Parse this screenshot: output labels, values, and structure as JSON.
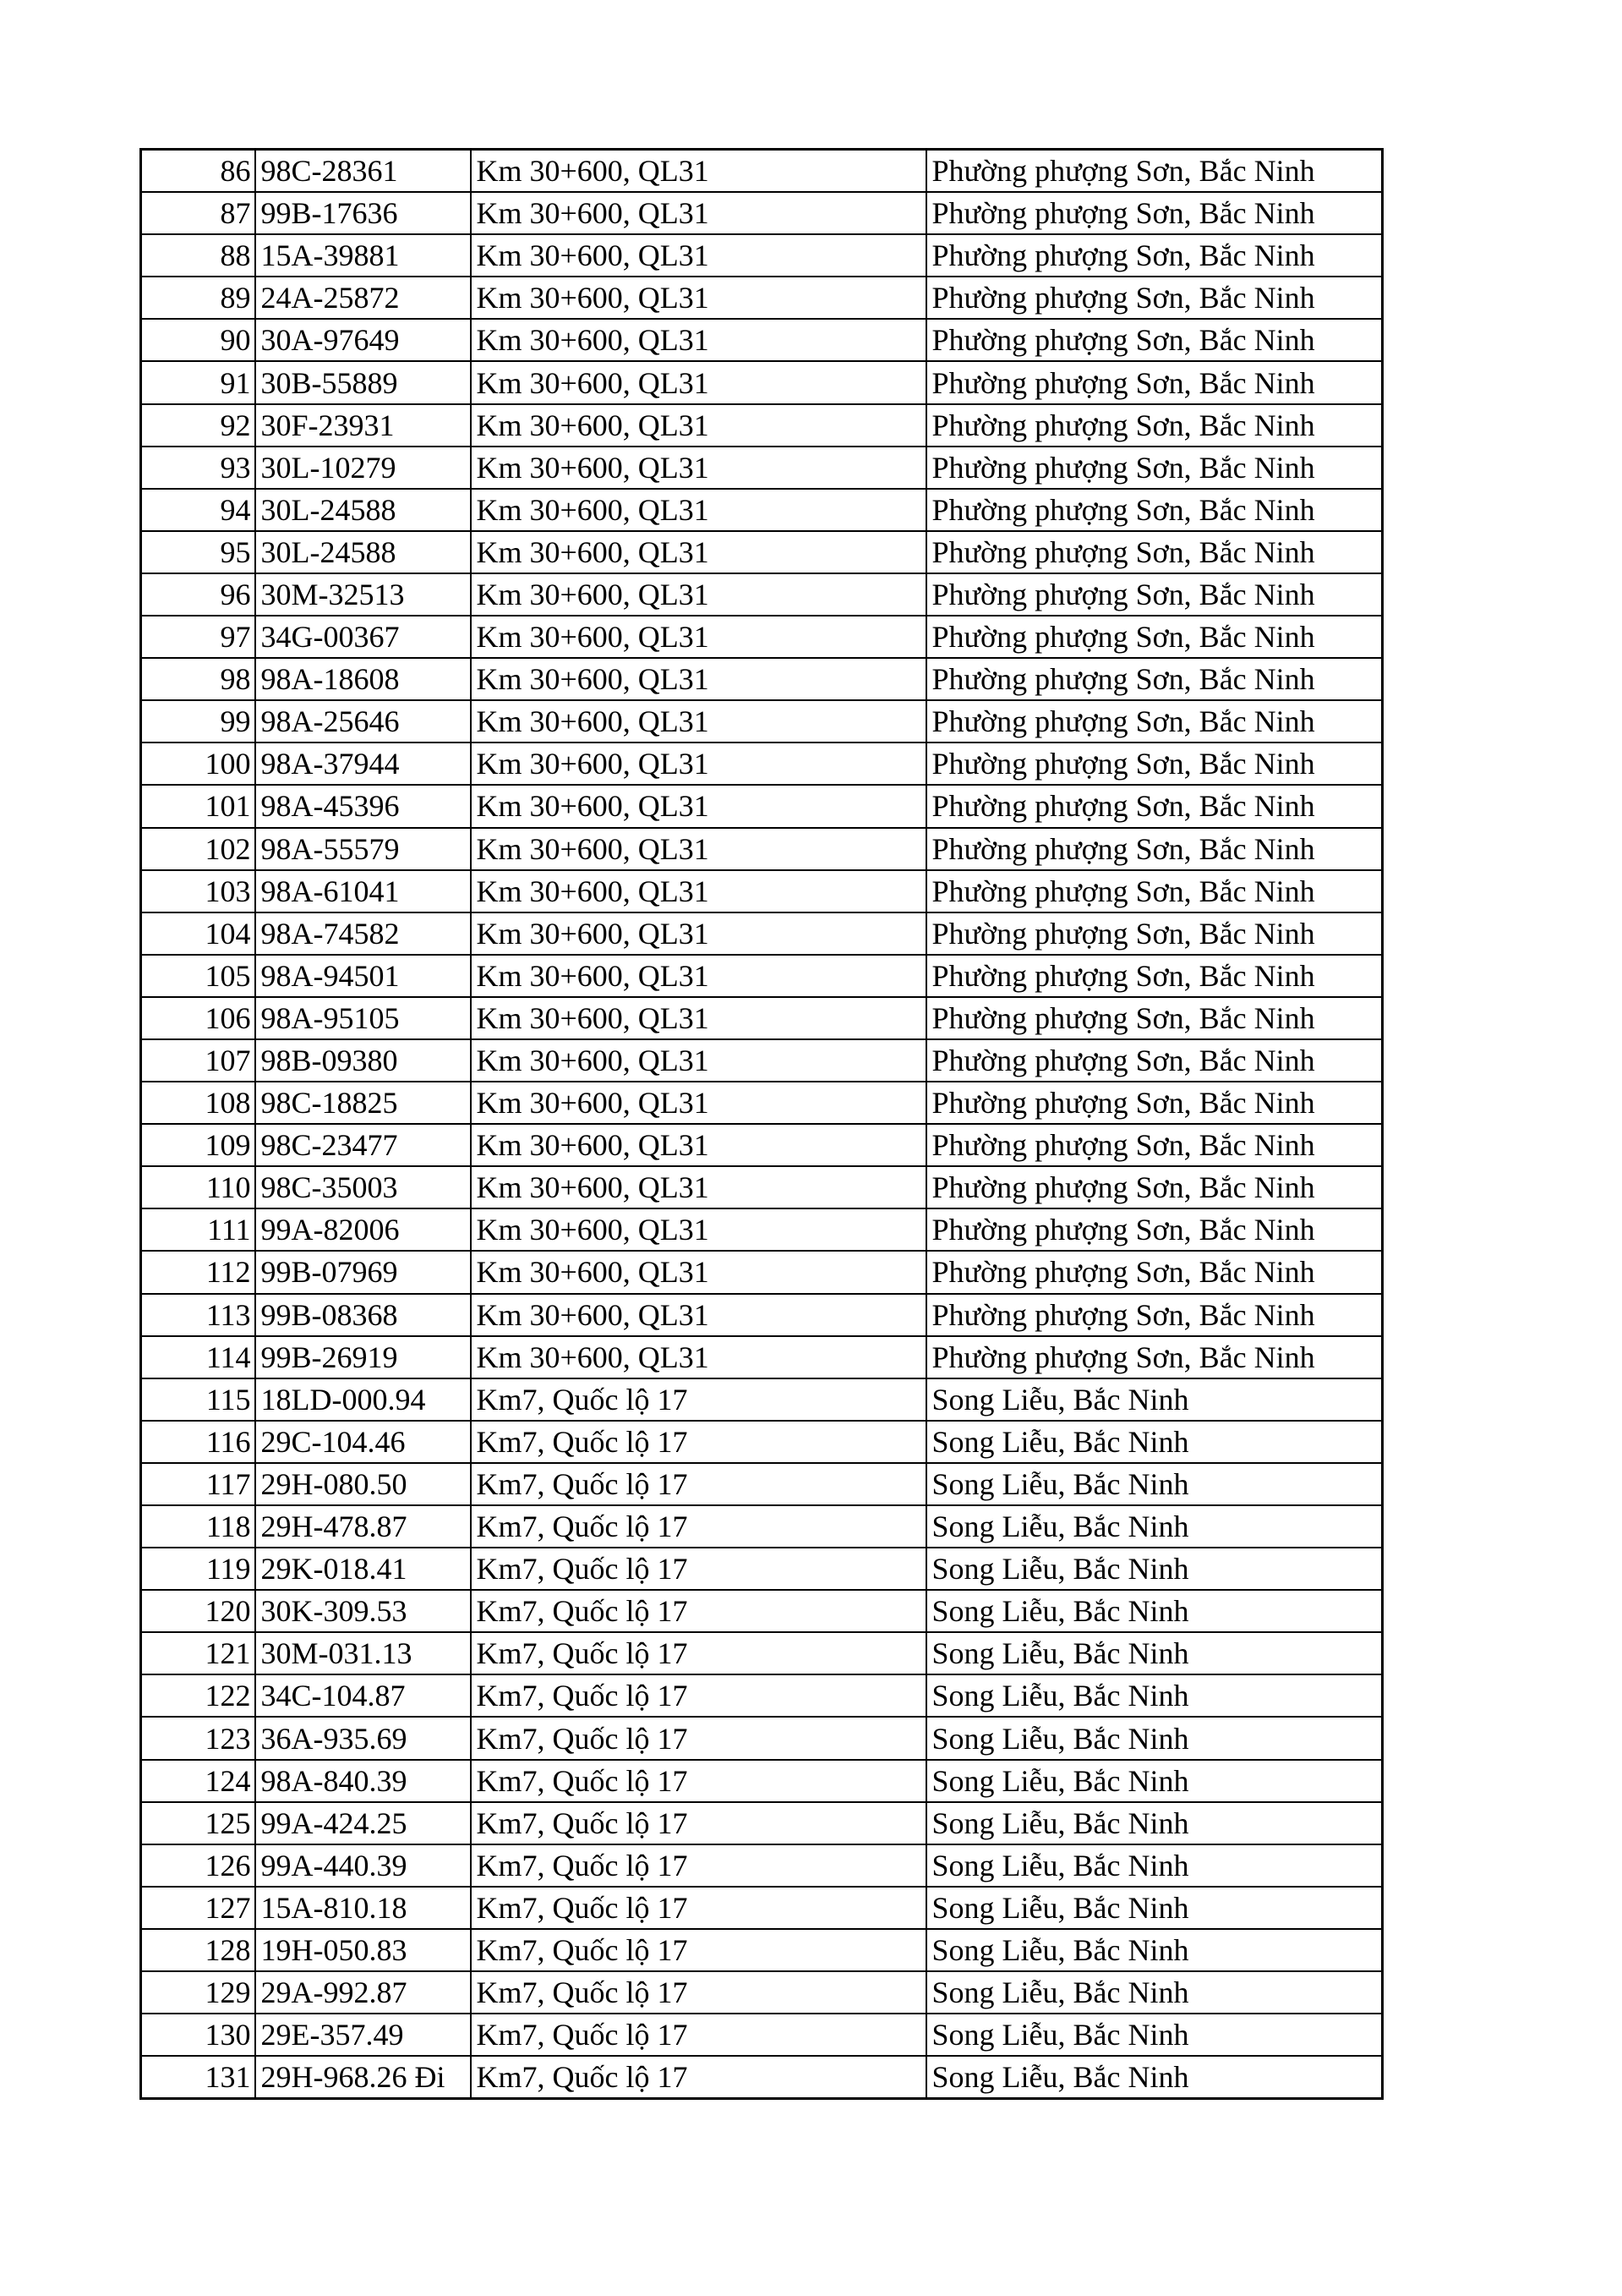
{
  "table": {
    "rows": [
      [
        "86",
        "98C-28361",
        "Km 30+600, QL31",
        "Phường phượng Sơn, Bắc Ninh"
      ],
      [
        "87",
        "99B-17636",
        "Km 30+600, QL31",
        "Phường phượng Sơn, Bắc Ninh"
      ],
      [
        "88",
        "15A-39881",
        "Km 30+600, QL31",
        "Phường phượng Sơn, Bắc Ninh"
      ],
      [
        "89",
        "24A-25872",
        "Km 30+600, QL31",
        "Phường phượng Sơn, Bắc Ninh"
      ],
      [
        "90",
        "30A-97649",
        "Km 30+600, QL31",
        "Phường phượng Sơn, Bắc Ninh"
      ],
      [
        "91",
        "30B-55889",
        "Km 30+600, QL31",
        "Phường phượng Sơn, Bắc Ninh"
      ],
      [
        "92",
        "30F-23931",
        "Km 30+600, QL31",
        "Phường phượng Sơn, Bắc Ninh"
      ],
      [
        "93",
        "30L-10279",
        "Km 30+600, QL31",
        "Phường phượng Sơn, Bắc Ninh"
      ],
      [
        "94",
        "30L-24588",
        "Km 30+600, QL31",
        "Phường phượng Sơn, Bắc Ninh"
      ],
      [
        "95",
        "30L-24588",
        "Km 30+600, QL31",
        "Phường phượng Sơn, Bắc Ninh"
      ],
      [
        "96",
        "30M-32513",
        "Km 30+600, QL31",
        "Phường phượng Sơn, Bắc Ninh"
      ],
      [
        "97",
        "34G-00367",
        "Km 30+600, QL31",
        "Phường phượng Sơn, Bắc Ninh"
      ],
      [
        "98",
        "98A-18608",
        "Km 30+600, QL31",
        "Phường phượng Sơn, Bắc Ninh"
      ],
      [
        "99",
        "98A-25646",
        "Km 30+600, QL31",
        "Phường phượng Sơn, Bắc Ninh"
      ],
      [
        "100",
        "98A-37944",
        "Km 30+600, QL31",
        "Phường phượng Sơn, Bắc Ninh"
      ],
      [
        "101",
        "98A-45396",
        "Km 30+600, QL31",
        "Phường phượng Sơn, Bắc Ninh"
      ],
      [
        "102",
        "98A-55579",
        "Km 30+600, QL31",
        "Phường phượng Sơn, Bắc Ninh"
      ],
      [
        "103",
        "98A-61041",
        "Km 30+600, QL31",
        "Phường phượng Sơn, Bắc Ninh"
      ],
      [
        "104",
        "98A-74582",
        "Km 30+600, QL31",
        "Phường phượng Sơn, Bắc Ninh"
      ],
      [
        "105",
        "98A-94501",
        "Km 30+600, QL31",
        "Phường phượng Sơn, Bắc Ninh"
      ],
      [
        "106",
        "98A-95105",
        "Km 30+600, QL31",
        "Phường phượng Sơn, Bắc Ninh"
      ],
      [
        "107",
        "98B-09380",
        "Km 30+600, QL31",
        "Phường phượng Sơn, Bắc Ninh"
      ],
      [
        "108",
        "98C-18825",
        "Km 30+600, QL31",
        "Phường phượng Sơn, Bắc Ninh"
      ],
      [
        "109",
        "98C-23477",
        "Km 30+600, QL31",
        "Phường phượng Sơn, Bắc Ninh"
      ],
      [
        "110",
        "98C-35003",
        "Km 30+600, QL31",
        "Phường phượng Sơn, Bắc Ninh"
      ],
      [
        "111",
        "99A-82006",
        "Km 30+600, QL31",
        "Phường phượng Sơn, Bắc Ninh"
      ],
      [
        "112",
        "99B-07969",
        "Km 30+600, QL31",
        "Phường phượng Sơn, Bắc Ninh"
      ],
      [
        "113",
        "99B-08368",
        "Km 30+600, QL31",
        "Phường phượng Sơn, Bắc Ninh"
      ],
      [
        "114",
        "99B-26919",
        "Km 30+600, QL31",
        "Phường phượng Sơn, Bắc Ninh"
      ],
      [
        "115",
        "18LD-000.94",
        "Km7, Quốc lộ 17",
        "Song Liễu, Bắc Ninh"
      ],
      [
        "116",
        "29C-104.46",
        "Km7, Quốc lộ 17",
        "Song Liễu, Bắc Ninh"
      ],
      [
        "117",
        "29H-080.50",
        "Km7, Quốc lộ 17",
        "Song Liễu, Bắc Ninh"
      ],
      [
        "118",
        "29H-478.87",
        "Km7, Quốc lộ 17",
        "Song Liễu, Bắc Ninh"
      ],
      [
        "119",
        "29K-018.41",
        "Km7, Quốc lộ 17",
        "Song Liễu, Bắc Ninh"
      ],
      [
        "120",
        "30K-309.53",
        "Km7, Quốc lộ 17",
        "Song Liễu, Bắc Ninh"
      ],
      [
        "121",
        "30M-031.13",
        "Km7, Quốc lộ 17",
        "Song Liễu, Bắc Ninh"
      ],
      [
        "122",
        "34C-104.87",
        "Km7, Quốc lộ 17",
        "Song Liễu, Bắc Ninh"
      ],
      [
        "123",
        "36A-935.69",
        "Km7, Quốc lộ 17",
        "Song Liễu, Bắc Ninh"
      ],
      [
        "124",
        "98A-840.39",
        "Km7, Quốc lộ 17",
        "Song Liễu, Bắc Ninh"
      ],
      [
        "125",
        "99A-424.25",
        "Km7, Quốc lộ 17",
        "Song Liễu, Bắc Ninh"
      ],
      [
        "126",
        "99A-440.39",
        "Km7, Quốc lộ 17",
        "Song Liễu, Bắc Ninh"
      ],
      [
        "127",
        "15A-810.18",
        "Km7, Quốc lộ 17",
        "Song Liễu, Bắc Ninh"
      ],
      [
        "128",
        "19H-050.83",
        "Km7, Quốc lộ 17",
        "Song Liễu, Bắc Ninh"
      ],
      [
        "129",
        "29A-992.87",
        "Km7, Quốc lộ 17",
        "Song Liễu, Bắc Ninh"
      ],
      [
        "130",
        "29E-357.49",
        "Km7, Quốc lộ 17",
        "Song Liễu, Bắc Ninh"
      ],
      [
        "131",
        "29H-968.26 Đi",
        "Km7, Quốc lộ 17",
        "Song Liễu, Bắc Ninh"
      ]
    ]
  }
}
